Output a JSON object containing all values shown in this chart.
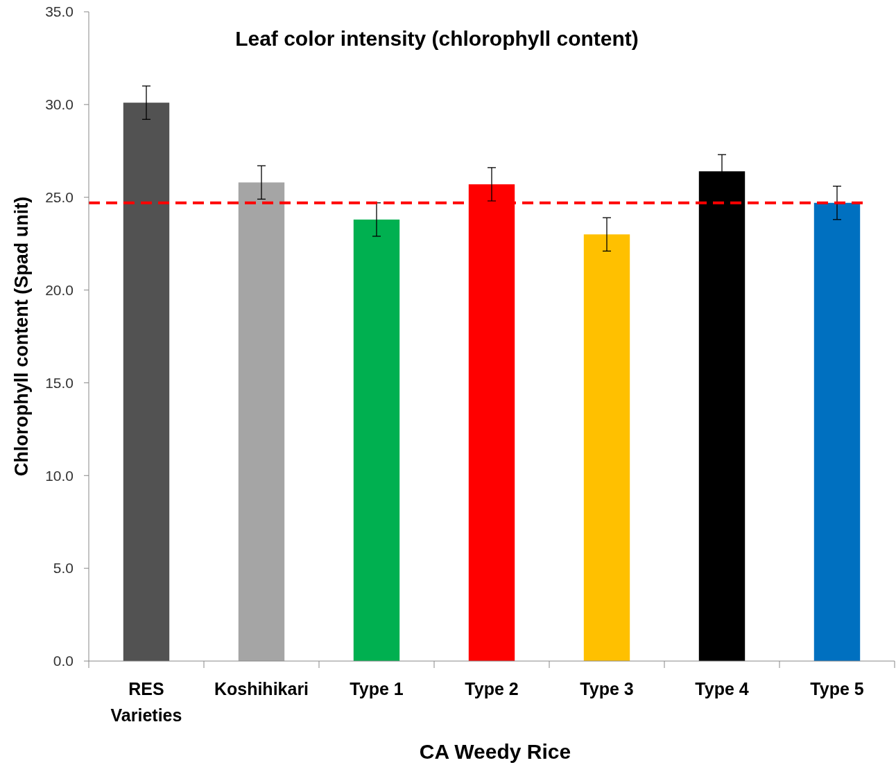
{
  "chart_data": {
    "type": "bar",
    "title": "Leaf color intensity (chlorophyll content)",
    "xlabel": "CA Weedy Rice",
    "ylabel": "Chlorophyll content (Spad unit)",
    "categories": [
      "RES Varieties",
      "Koshihikari",
      "Type 1",
      "Type 2",
      "Type 3",
      "Type 4",
      "Type 5"
    ],
    "values": [
      30.1,
      25.8,
      23.8,
      25.7,
      23.0,
      26.4,
      24.7
    ],
    "colors": [
      "#525252",
      "#a5a5a5",
      "#00b050",
      "#ff0000",
      "#ffc000",
      "#000000",
      "#0070c0"
    ],
    "errors": [
      0.9,
      0.9,
      0.9,
      0.9,
      0.9,
      0.9,
      0.9
    ],
    "ylim": [
      0,
      35
    ],
    "yticks": [
      {
        "value": 0,
        "label": "0.0"
      },
      {
        "value": 5,
        "label": "5.0"
      },
      {
        "value": 10,
        "label": "10.0"
      },
      {
        "value": 15,
        "label": "15.0"
      },
      {
        "value": 20,
        "label": "20.0"
      },
      {
        "value": 25,
        "label": "25.0"
      },
      {
        "value": 30,
        "label": "30.0"
      },
      {
        "value": 35,
        "label": "35.0"
      }
    ],
    "ref_lines": [
      {
        "axis": "y",
        "value": 24.7,
        "color": "#ff0000",
        "line_style": "dashed"
      }
    ],
    "grid": false
  }
}
